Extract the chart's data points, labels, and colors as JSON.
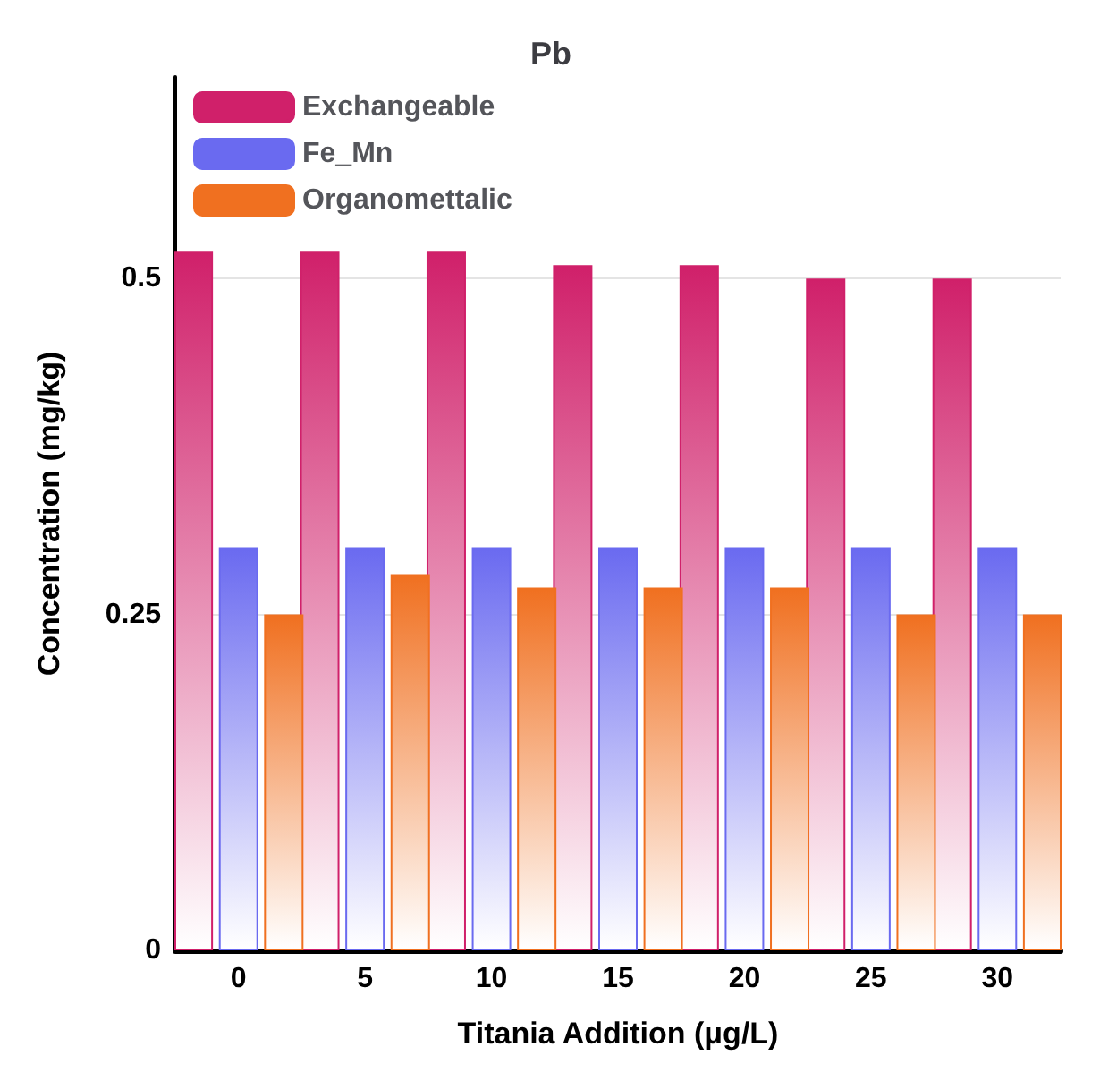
{
  "chart_data": {
    "type": "bar",
    "title": "Pb",
    "xlabel": "Titania Addition (μg/L)",
    "ylabel": "Concentration (mg/kg)",
    "categories": [
      "0",
      "5",
      "10",
      "15",
      "20",
      "25",
      "30"
    ],
    "series": [
      {
        "name": "Exchangeable",
        "color": "#d0206a",
        "values": [
          0.52,
          0.52,
          0.52,
          0.51,
          0.51,
          0.5,
          0.5
        ]
      },
      {
        "name": "Fe_Mn",
        "color": "#6a6af0",
        "values": [
          0.3,
          0.3,
          0.3,
          0.3,
          0.3,
          0.3,
          0.3
        ]
      },
      {
        "name": "Organomettalic",
        "color": "#f07020",
        "values": [
          0.25,
          0.28,
          0.27,
          0.27,
          0.27,
          0.25,
          0.25
        ]
      }
    ],
    "ylim": [
      0,
      0.65
    ],
    "yticks": [
      0,
      0.25,
      0.5
    ],
    "grid": "y",
    "legend": "top left"
  }
}
